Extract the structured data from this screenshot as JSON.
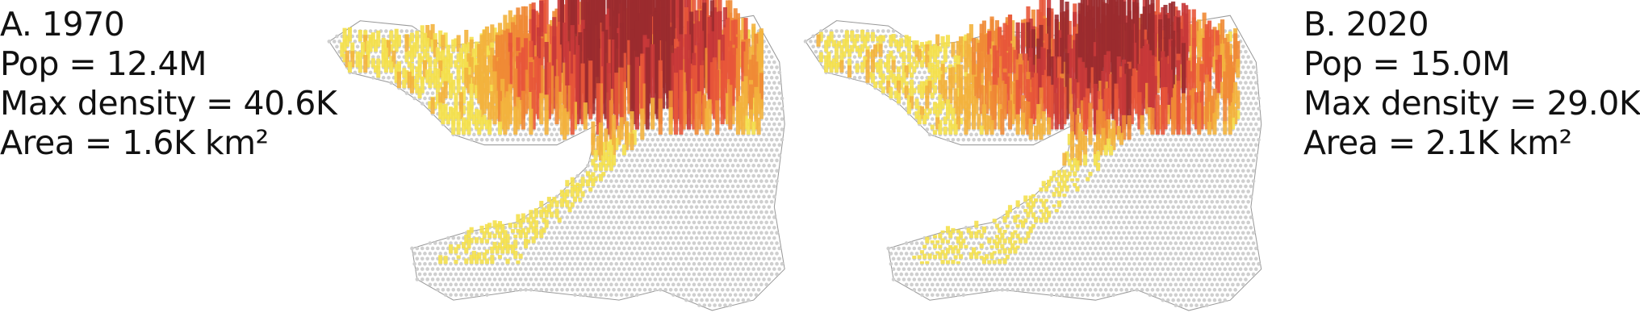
{
  "panels": [
    {
      "title": "A. 1970",
      "lines": [
        "Pop = 12.4M",
        "Max density = 40.6K",
        "Area = 1.6K km²"
      ]
    },
    {
      "title": "B. 2020",
      "lines": [
        "Pop = 15.0M",
        "Max density = 29.0K",
        "Area = 2.1K km²"
      ]
    }
  ]
}
